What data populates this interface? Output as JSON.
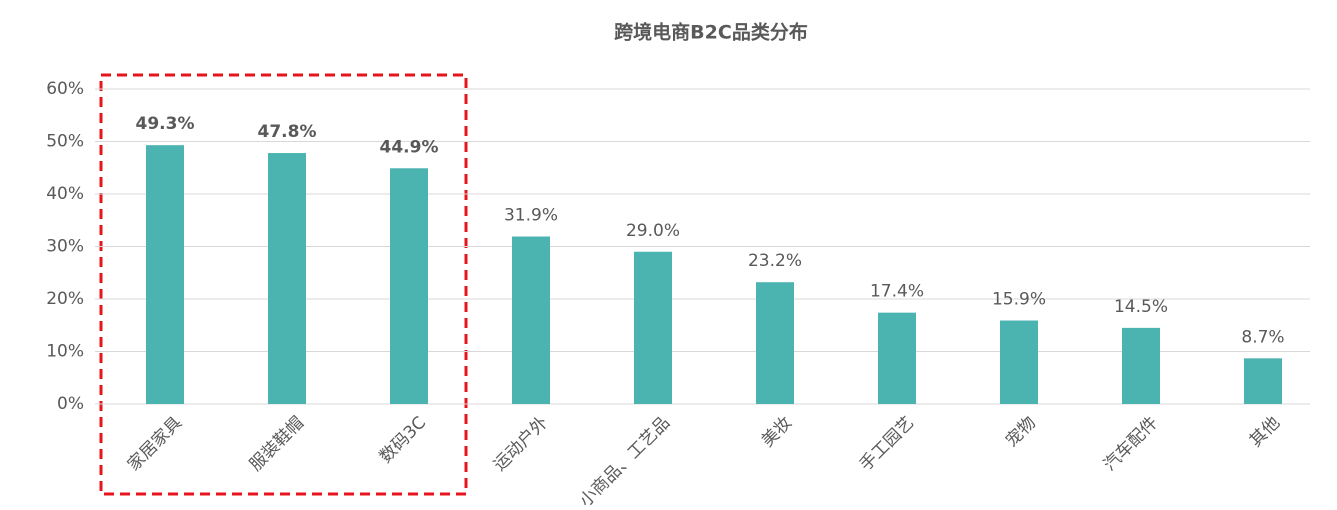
{
  "chart_data": {
    "type": "bar",
    "title": "跨境电商B2C品类分布",
    "categories": [
      "家居家具",
      "服装鞋帽",
      "数码3C",
      "运动户外",
      "小商品、工艺品",
      "美妆",
      "手工园艺",
      "宠物",
      "汽车配件",
      "其他"
    ],
    "values": [
      49.3,
      47.8,
      44.9,
      31.9,
      29.0,
      23.2,
      17.4,
      15.9,
      14.5,
      8.7
    ],
    "value_labels": [
      "49.3%",
      "47.8%",
      "44.9%",
      "31.9%",
      "29.0%",
      "23.2%",
      "17.4%",
      "15.9%",
      "14.5%",
      "8.7%"
    ],
    "color": "#4bb3b0",
    "ylim": [
      0,
      60
    ],
    "yticks": [
      {
        "value": 0,
        "label": "0%"
      },
      {
        "value": 10,
        "label": "10%"
      },
      {
        "value": 20,
        "label": "20%"
      },
      {
        "value": 30,
        "label": "30%"
      },
      {
        "value": 40,
        "label": "40%"
      },
      {
        "value": 50,
        "label": "50%"
      },
      {
        "value": 60,
        "label": "60%"
      }
    ],
    "grid": true
  }
}
